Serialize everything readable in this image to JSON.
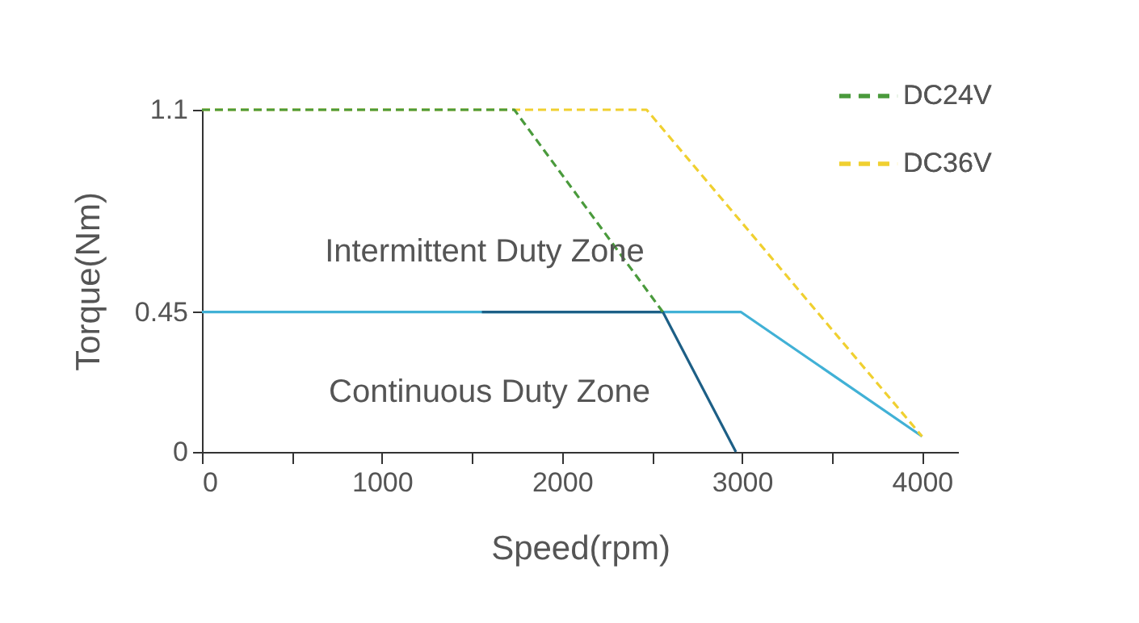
{
  "chart_data": {
    "type": "line",
    "xlabel": "Speed(rpm)",
    "ylabel": "Torque(Nm)",
    "xlim": [
      0,
      4200
    ],
    "xticks": [
      0,
      {
        "value": 500,
        "label": null
      },
      1000,
      {
        "value": 1500,
        "label": null
      },
      2000,
      {
        "value": 2500,
        "label": null
      },
      3000,
      {
        "value": 3500,
        "label": null
      },
      4000
    ],
    "ylim": [
      0,
      1.1
    ],
    "yticks": [
      0,
      0.45,
      1.1
    ],
    "series": [
      {
        "name": "DC24V",
        "color": "#4a9a3c",
        "line_style": "dashed",
        "x": [
          0,
          1735,
          2560
        ],
        "values": [
          1.1,
          1.1,
          0.45
        ]
      },
      {
        "name": "DC36V",
        "color": "#f0d030",
        "line_style": "dashed",
        "x": [
          0,
          2470,
          4000
        ],
        "values": [
          1.1,
          1.1,
          0.05
        ]
      },
      {
        "color": "#1d5f86",
        "line_style": "solid",
        "x": [
          1555,
          2560,
          2966
        ],
        "values": [
          0.45,
          0.45,
          0
        ]
      },
      {
        "color": "#41b1d6",
        "line_style": "solid",
        "x": [
          0,
          2993,
          4000
        ],
        "values": [
          0.45,
          0.45,
          0.05
        ]
      }
    ],
    "annotations": [
      "Intermittent Duty Zone",
      "Continuous Duty Zone"
    ],
    "legend": "top right",
    "marker": "none",
    "grid": false
  }
}
